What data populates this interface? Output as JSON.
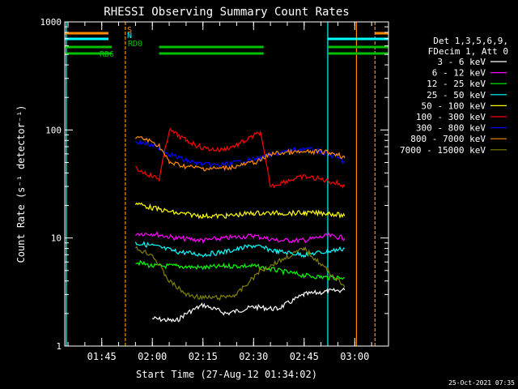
{
  "chart_data": {
    "type": "line",
    "title": "RHESSI Observing Summary Count Rates",
    "xlabel": "Start Time (27-Aug-12 01:34:02)",
    "ylabel": "Count Rate (s⁻¹ detector⁻¹)",
    "y_scale": "log",
    "ylim": [
      1,
      1000
    ],
    "xlim": [
      "01:34:02",
      "03:10:00"
    ],
    "x_tick_labels": [
      "01:45",
      "02:00",
      "02:15",
      "02:30",
      "02:45",
      "03:00"
    ],
    "y_tick_labels": [
      "1",
      "10",
      "100",
      "1000"
    ],
    "footer": "25-Oct-2021 07:35",
    "legend": {
      "placement": "right",
      "header": [
        "Det 1,3,5,6,9,",
        "FDecim 1, Att 0"
      ]
    },
    "series": [
      {
        "name": "3 - 6 keV",
        "color": "#ffffff",
        "x": [
          "02:00",
          "02:07",
          "02:10",
          "02:15",
          "02:22",
          "02:30",
          "02:37",
          "02:45",
          "02:52",
          "02:57"
        ],
        "values": [
          1.8,
          1.7,
          2.0,
          2.4,
          2.0,
          2.3,
          2.2,
          3.0,
          3.2,
          3.3
        ]
      },
      {
        "name": "6 - 12 keV",
        "color": "#ff00ff",
        "x": [
          "01:55",
          "02:00",
          "02:07",
          "02:15",
          "02:22",
          "02:30",
          "02:37",
          "02:45",
          "02:52",
          "02:57"
        ],
        "values": [
          11,
          11,
          10,
          9.5,
          10,
          10.5,
          9.5,
          9.5,
          10.5,
          10
        ]
      },
      {
        "name": "12 - 25 keV",
        "color": "#00ff00",
        "x": [
          "01:55",
          "02:00",
          "02:07",
          "02:15",
          "02:22",
          "02:30",
          "02:37",
          "02:45",
          "02:52",
          "02:57"
        ],
        "values": [
          6.0,
          5.5,
          5.5,
          5.3,
          5.5,
          5.5,
          5.0,
          4.5,
          4.3,
          4.3
        ]
      },
      {
        "name": "25 - 50 keV",
        "color": "#00ffff",
        "x": [
          "01:55",
          "02:00",
          "02:07",
          "02:15",
          "02:22",
          "02:30",
          "02:37",
          "02:45",
          "02:52",
          "02:57"
        ],
        "values": [
          9.0,
          8.5,
          7.5,
          7.0,
          7.5,
          8.5,
          7.5,
          7.0,
          7.5,
          8.0
        ]
      },
      {
        "name": "50 - 100 keV",
        "color": "#ffff00",
        "x": [
          "01:55",
          "02:00",
          "02:07",
          "02:15",
          "02:22",
          "02:30",
          "02:37",
          "02:45",
          "02:52",
          "02:57"
        ],
        "values": [
          21,
          19,
          17,
          16,
          16,
          17,
          17,
          17,
          17,
          16
        ]
      },
      {
        "name": "100 - 300 keV",
        "color": "#ff0000",
        "x": [
          "01:55",
          "01:58",
          "02:02",
          "02:05",
          "02:10",
          "02:15",
          "02:20",
          "02:25",
          "02:32",
          "02:35",
          "02:40",
          "02:45",
          "02:50",
          "02:55",
          "02:57"
        ],
        "values": [
          44,
          40,
          35,
          100,
          80,
          68,
          65,
          72,
          95,
          30,
          34,
          37,
          35,
          32,
          30
        ]
      },
      {
        "name": "300 - 800 keV",
        "color": "#0000ff",
        "x": [
          "01:55",
          "01:58",
          "02:02",
          "02:05",
          "02:10",
          "02:15",
          "02:20",
          "02:25",
          "02:32",
          "02:35",
          "02:40",
          "02:45",
          "02:50",
          "02:55",
          "02:57"
        ],
        "values": [
          78,
          75,
          68,
          60,
          52,
          48,
          47,
          50,
          55,
          58,
          64,
          67,
          63,
          55,
          50
        ]
      },
      {
        "name": "800 - 7000 keV",
        "color": "#ff8c00",
        "x": [
          "01:55",
          "01:58",
          "02:02",
          "02:05",
          "02:10",
          "02:15",
          "02:20",
          "02:25",
          "02:32",
          "02:35",
          "02:40",
          "02:45",
          "02:50",
          "02:55",
          "02:57"
        ],
        "values": [
          85,
          82,
          72,
          50,
          46,
          44,
          44,
          46,
          52,
          60,
          62,
          62,
          63,
          60,
          55
        ]
      },
      {
        "name": "7000 - 15000 keV",
        "color": "#808000",
        "x": [
          "01:55",
          "02:00",
          "02:05",
          "02:10",
          "02:15",
          "02:20",
          "02:25",
          "02:32",
          "02:37",
          "02:45",
          "02:52",
          "02:57"
        ],
        "values": [
          8.0,
          7.0,
          4.0,
          3.0,
          2.8,
          2.8,
          3.0,
          5.0,
          6.0,
          8.0,
          5.0,
          3.5
        ]
      }
    ],
    "flag_bars": [
      {
        "label": "S",
        "color": "#ff8c00",
        "level": 1,
        "on": [
          [
            "01:34:02",
            "01:47:00"
          ],
          [
            "03:06:00",
            "03:10:00"
          ]
        ]
      },
      {
        "label": "N",
        "color": "#00ffff",
        "level": 2,
        "on": [
          [
            "01:34:02",
            "01:47:00"
          ],
          [
            "02:52:00",
            "03:10:00"
          ]
        ]
      },
      {
        "label": "RD0",
        "color": "#00c000",
        "level": 3,
        "on": [
          [
            "01:34:02",
            "01:48:00"
          ],
          [
            "02:02:00",
            "02:33:00"
          ],
          [
            "02:52:00",
            "03:10:00"
          ]
        ]
      },
      {
        "label": "RD6",
        "color": "#00c000",
        "level": 4,
        "on": [
          [
            "01:34:02",
            "01:48:00"
          ],
          [
            "02:02:00",
            "02:33:00"
          ],
          [
            "02:52:00",
            "03:10:00"
          ]
        ]
      }
    ],
    "markers": [
      {
        "x": "01:34:30",
        "color": "#00ffff",
        "style": "solid"
      },
      {
        "x": "01:52:00",
        "color": "#ff8c00",
        "style": "dashed"
      },
      {
        "x": "02:52:00",
        "color": "#00ffff",
        "style": "solid"
      },
      {
        "x": "03:00:30",
        "color": "#ff8c00",
        "style": "solid"
      },
      {
        "x": "03:06:00",
        "color": "#ff8c00",
        "style": "dashed"
      }
    ]
  }
}
